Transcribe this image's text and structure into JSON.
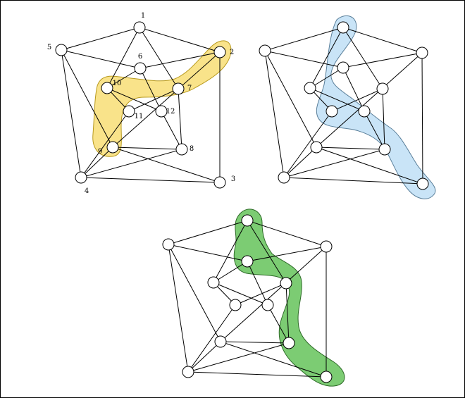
{
  "colors": {
    "yellow_highlight": "#f9e38a",
    "yellow_stroke": "#b89a1e",
    "blue_highlight": "#c9e4f7",
    "blue_stroke": "#5a7f9a",
    "green_highlight": "#7ccc73",
    "green_stroke": "#2e6b28"
  },
  "graph": {
    "node_labels": [
      "1",
      "2",
      "3",
      "4",
      "5",
      "6",
      "7",
      "8",
      "9",
      "10",
      "11",
      "12"
    ],
    "edges": [
      [
        1,
        5
      ],
      [
        1,
        2
      ],
      [
        1,
        10
      ],
      [
        1,
        7
      ],
      [
        5,
        6
      ],
      [
        5,
        9
      ],
      [
        5,
        4
      ],
      [
        6,
        2
      ],
      [
        6,
        10
      ],
      [
        6,
        12
      ],
      [
        2,
        3
      ],
      [
        2,
        9
      ],
      [
        10,
        11
      ],
      [
        10,
        12
      ],
      [
        7,
        11
      ],
      [
        7,
        8
      ],
      [
        12,
        8
      ],
      [
        9,
        8
      ],
      [
        9,
        4
      ],
      [
        9,
        3
      ],
      [
        4,
        8
      ],
      [
        4,
        3
      ],
      [
        11,
        4
      ]
    ]
  },
  "panels": [
    {
      "name": "panel-top-left",
      "labeled": true,
      "highlight_path": [
        2,
        7,
        10,
        9
      ],
      "highlight_color": "yellow"
    },
    {
      "name": "panel-top-right",
      "labeled": false,
      "highlight_path": [
        1,
        6,
        11,
        12,
        3
      ],
      "highlight_color": "blue"
    },
    {
      "name": "panel-bottom",
      "labeled": false,
      "highlight_path": [
        1,
        6,
        7,
        8,
        3
      ],
      "highlight_color": "green"
    }
  ]
}
